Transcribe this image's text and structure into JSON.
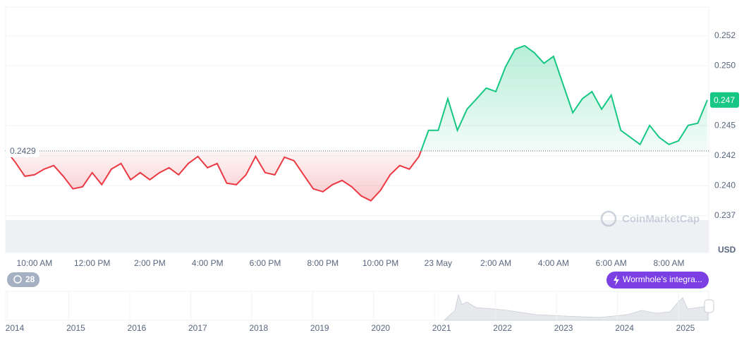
{
  "chart_data": {
    "type": "line",
    "categories": [
      null,
      null,
      null,
      "10:00 AM",
      null,
      null,
      null,
      null,
      null,
      "12:00 PM",
      null,
      null,
      null,
      null,
      null,
      "2:00 PM",
      null,
      null,
      null,
      null,
      null,
      "4:00 PM",
      null,
      null,
      null,
      null,
      null,
      "6:00 PM",
      null,
      null,
      null,
      null,
      null,
      "8:00 PM",
      null,
      null,
      null,
      null,
      null,
      "10:00 PM",
      null,
      null,
      null,
      null,
      null,
      "23 May",
      null,
      null,
      null,
      null,
      null,
      "2:00 AM",
      null,
      null,
      null,
      null,
      null,
      "4:00 AM",
      null,
      null,
      null,
      null,
      null,
      "6:00 AM",
      null,
      null,
      null,
      null,
      null,
      "8:00 AM",
      null,
      null,
      null,
      null
    ],
    "values": [
      0.24297,
      0.24197,
      0.24079,
      0.24091,
      0.24138,
      0.24168,
      0.24079,
      0.23974,
      0.23991,
      0.24109,
      0.24009,
      0.24138,
      0.24185,
      0.2405,
      0.24109,
      0.2405,
      0.24109,
      0.2415,
      0.24091,
      0.24185,
      0.24244,
      0.2415,
      0.24185,
      0.24021,
      0.24009,
      0.24091,
      0.24244,
      0.24109,
      0.24091,
      0.24238,
      0.24209,
      0.24091,
      0.23974,
      0.2395,
      0.24009,
      0.24044,
      0.23991,
      0.23915,
      0.23874,
      0.23962,
      0.24091,
      0.24168,
      0.24138,
      0.24244,
      0.24462,
      0.24462,
      0.24726,
      0.24462,
      0.24638,
      0.24726,
      0.24815,
      0.24785,
      0.24991,
      0.25138,
      0.25168,
      0.25109,
      0.25021,
      0.25079,
      0.24844,
      0.24609,
      0.24726,
      0.24785,
      0.24638,
      0.24756,
      0.24462,
      0.24403,
      0.24344,
      0.24503,
      0.24403,
      0.24344,
      0.24374,
      0.24503,
      0.24521,
      0.24715
    ],
    "up_color": "#16c784",
    "down_color": "#ea3943",
    "ylim": [
      0.2349,
      0.2549
    ],
    "yticks": [
      {
        "value": 0.2375,
        "label": "0.237"
      },
      {
        "value": 0.24,
        "label": "0.240"
      },
      {
        "value": 0.2425,
        "label": "0.242"
      },
      {
        "value": 0.245,
        "label": "0.245"
      },
      {
        "value": 0.25,
        "label": "0.250"
      },
      {
        "value": 0.2525,
        "label": "0.252"
      }
    ],
    "grid": true,
    "reference": 0.2429,
    "current": {
      "value": 0.24715,
      "label": "0.247"
    },
    "currency": "USD",
    "watermark": "CoinMarketCap",
    "event_count": 28,
    "annotation": "Wormhole's integra...",
    "navigator_labels": [
      "2014",
      "2015",
      "2016",
      "2017",
      "2018",
      "2019",
      "2020",
      "2021",
      "2022",
      "2023",
      "2024",
      "2025"
    ]
  }
}
